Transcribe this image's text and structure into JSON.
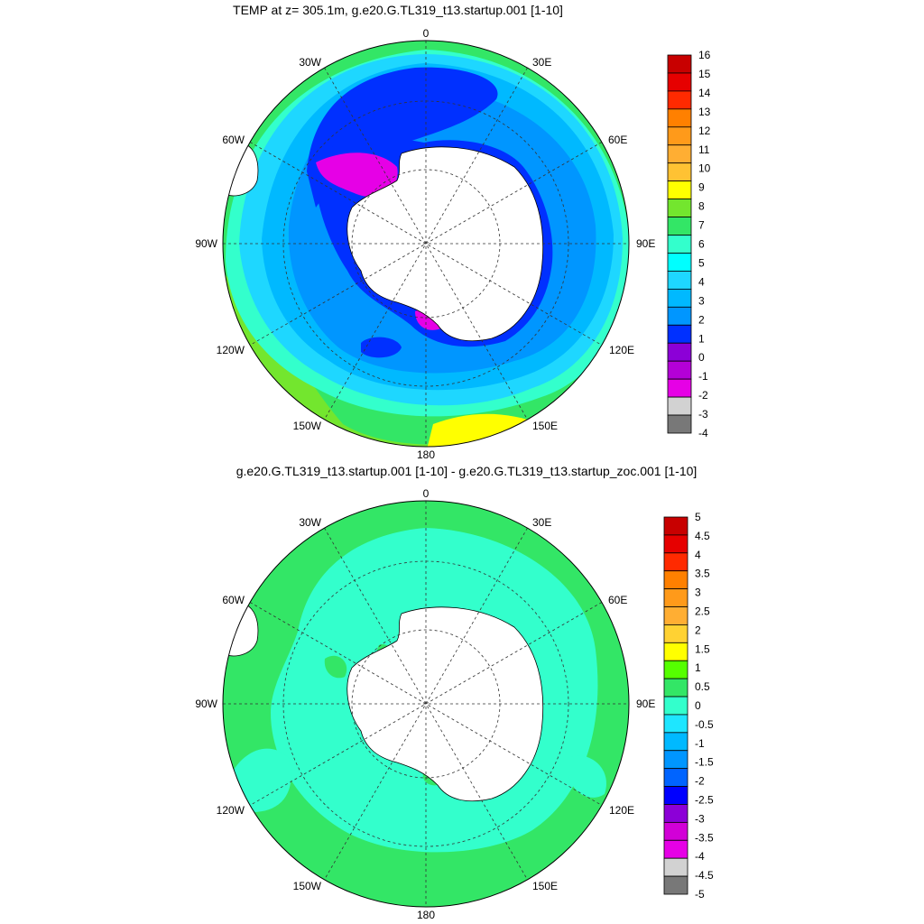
{
  "panels": [
    {
      "title": "TEMP at z= 305.1m, g.e20.G.TL319_t13.startup.001 [1-10]",
      "lon_labels": {
        "top": "0",
        "bottom": "180",
        "left": "90W",
        "right": "90E",
        "upper_left": "30W",
        "upper_right": "30E",
        "mid_upper_left": "60W",
        "mid_upper_right": "60E",
        "mid_lower_left": "120W",
        "mid_lower_right": "120E",
        "lower_left": "150W",
        "lower_right": "150E"
      },
      "colorbar": {
        "labels": [
          "16",
          "15",
          "14",
          "13",
          "12",
          "11",
          "10",
          "9",
          "8",
          "7",
          "6",
          "5",
          "4",
          "3",
          "2",
          "1",
          "0",
          "-1",
          "-2",
          "-3",
          "-4"
        ],
        "colors": [
          "#c80000",
          "#e60000",
          "#ff2a00",
          "#ff8000",
          "#ff9a1a",
          "#ffae33",
          "#ffc233",
          "#ffff00",
          "#73e62e",
          "#33e666",
          "#33ffcc",
          "#00ffff",
          "#1ed7ff",
          "#00b9ff",
          "#0096ff",
          "#0030ff",
          "#8c00d7",
          "#b400d7",
          "#e600e6",
          "#d2d2d2",
          "#787878"
        ]
      }
    },
    {
      "title": "g.e20.G.TL319_t13.startup.001 [1-10] - g.e20.G.TL319_t13.startup_zoc.001 [1-10]",
      "lon_labels": {
        "top": "0",
        "bottom": "180",
        "left": "90W",
        "right": "90E",
        "upper_left": "30W",
        "upper_right": "30E",
        "mid_upper_left": "60W",
        "mid_upper_right": "60E",
        "mid_lower_left": "120W",
        "mid_lower_right": "120E",
        "lower_left": "150W",
        "lower_right": "150E"
      },
      "colorbar": {
        "labels": [
          "5",
          "4.5",
          "4",
          "3.5",
          "3",
          "2.5",
          "2",
          "1.5",
          "1",
          "0.5",
          "0",
          "-0.5",
          "-1",
          "-1.5",
          "-2",
          "-2.5",
          "-3",
          "-3.5",
          "-4",
          "-4.5",
          "-5"
        ],
        "colors": [
          "#c80000",
          "#e60000",
          "#ff2a00",
          "#ff8000",
          "#ff9a1a",
          "#ffae33",
          "#ffd233",
          "#ffff00",
          "#55ff00",
          "#33e666",
          "#33ffcc",
          "#1ee6ff",
          "#00b9ff",
          "#0096ff",
          "#0064ff",
          "#0000ff",
          "#8c00d7",
          "#d200d7",
          "#e600e6",
          "#d2d2d2",
          "#787878"
        ]
      }
    }
  ]
}
